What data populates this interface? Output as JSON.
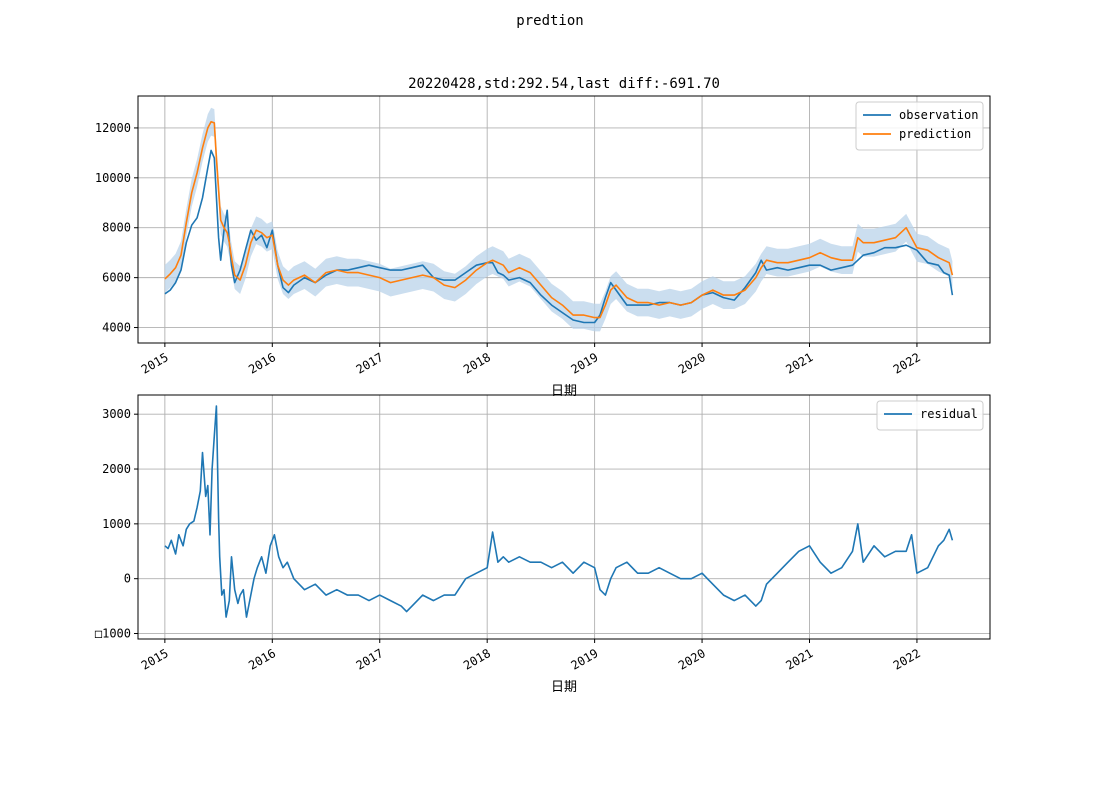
{
  "figure": {
    "suptitle": "predtion"
  },
  "colors": {
    "observation": "#1f77b4",
    "prediction": "#ff7f0e",
    "band": "#b9d3ea",
    "grid": "#b0b0b0",
    "axis": "#000000"
  },
  "chart_data": [
    {
      "type": "line",
      "title": "20220428,std:292.54,last diff:-691.70",
      "xlabel": "日期",
      "ylabel": "",
      "xlim": [
        2014.75,
        2022.68
      ],
      "ylim": [
        3380,
        13280
      ],
      "x_ticks": [
        2015,
        2016,
        2017,
        2018,
        2019,
        2020,
        2021,
        2022
      ],
      "x_tick_labels": [
        "2015",
        "2016",
        "2017",
        "2018",
        "2019",
        "2020",
        "2021",
        "2022"
      ],
      "y_ticks": [
        4000,
        6000,
        8000,
        10000,
        12000
      ],
      "y_tick_labels": [
        "4000",
        "6000",
        "8000",
        "10000",
        "12000"
      ],
      "grid": true,
      "legend_position": "top-right",
      "legend": [
        "observation",
        "prediction"
      ],
      "band_std": 292.54,
      "series": [
        {
          "name": "observation",
          "x": [
            2015.0,
            2015.05,
            2015.1,
            2015.15,
            2015.2,
            2015.25,
            2015.3,
            2015.35,
            2015.4,
            2015.43,
            2015.46,
            2015.5,
            2015.52,
            2015.55,
            2015.58,
            2015.6,
            2015.62,
            2015.65,
            2015.7,
            2015.75,
            2015.8,
            2015.85,
            2015.9,
            2015.95,
            2016.0,
            2016.05,
            2016.1,
            2016.15,
            2016.2,
            2016.3,
            2016.4,
            2016.5,
            2016.6,
            2016.7,
            2016.8,
            2016.9,
            2017.0,
            2017.1,
            2017.2,
            2017.3,
            2017.4,
            2017.5,
            2017.6,
            2017.7,
            2017.8,
            2017.9,
            2018.0,
            2018.05,
            2018.1,
            2018.15,
            2018.2,
            2018.3,
            2018.4,
            2018.5,
            2018.6,
            2018.7,
            2018.8,
            2018.9,
            2019.0,
            2019.05,
            2019.1,
            2019.15,
            2019.2,
            2019.3,
            2019.4,
            2019.5,
            2019.6,
            2019.7,
            2019.8,
            2019.9,
            2020.0,
            2020.1,
            2020.2,
            2020.3,
            2020.4,
            2020.5,
            2020.55,
            2020.6,
            2020.7,
            2020.8,
            2020.9,
            2021.0,
            2021.1,
            2021.2,
            2021.3,
            2021.4,
            2021.5,
            2021.6,
            2021.7,
            2021.8,
            2021.9,
            2022.0,
            2022.1,
            2022.2,
            2022.25,
            2022.3,
            2022.33
          ],
          "values": [
            5350,
            5500,
            5800,
            6300,
            7400,
            8100,
            8400,
            9200,
            10400,
            11100,
            10800,
            7600,
            6700,
            7900,
            8700,
            7400,
            6500,
            5800,
            6300,
            7100,
            7900,
            7500,
            7700,
            7200,
            7900,
            6500,
            5600,
            5400,
            5700,
            6000,
            5800,
            6100,
            6300,
            6300,
            6400,
            6500,
            6400,
            6300,
            6300,
            6400,
            6500,
            6000,
            5900,
            5900,
            6200,
            6500,
            6600,
            6600,
            6200,
            6100,
            5900,
            6000,
            5800,
            5300,
            4900,
            4600,
            4300,
            4200,
            4200,
            4500,
            5200,
            5800,
            5500,
            4900,
            4900,
            4900,
            5000,
            5000,
            4900,
            5000,
            5300,
            5400,
            5200,
            5100,
            5600,
            6200,
            6700,
            6300,
            6400,
            6300,
            6400,
            6500,
            6500,
            6300,
            6400,
            6500,
            6900,
            7000,
            7200,
            7200,
            7300,
            7100,
            6600,
            6500,
            6200,
            6100,
            5300
          ]
        },
        {
          "name": "prediction",
          "x": [
            2015.0,
            2015.05,
            2015.1,
            2015.15,
            2015.2,
            2015.25,
            2015.3,
            2015.35,
            2015.4,
            2015.43,
            2015.46,
            2015.48,
            2015.52,
            2015.55,
            2015.58,
            2015.6,
            2015.62,
            2015.65,
            2015.7,
            2015.75,
            2015.8,
            2015.85,
            2015.9,
            2015.95,
            2016.0,
            2016.05,
            2016.1,
            2016.15,
            2016.2,
            2016.3,
            2016.4,
            2016.5,
            2016.6,
            2016.7,
            2016.8,
            2016.9,
            2017.0,
            2017.1,
            2017.2,
            2017.3,
            2017.4,
            2017.5,
            2017.6,
            2017.7,
            2017.8,
            2017.9,
            2018.0,
            2018.05,
            2018.1,
            2018.15,
            2018.2,
            2018.3,
            2018.4,
            2018.5,
            2018.6,
            2018.7,
            2018.8,
            2018.9,
            2019.0,
            2019.05,
            2019.1,
            2019.15,
            2019.2,
            2019.3,
            2019.4,
            2019.5,
            2019.6,
            2019.7,
            2019.8,
            2019.9,
            2020.0,
            2020.1,
            2020.2,
            2020.3,
            2020.4,
            2020.5,
            2020.55,
            2020.6,
            2020.7,
            2020.8,
            2020.9,
            2021.0,
            2021.1,
            2021.2,
            2021.3,
            2021.4,
            2021.45,
            2021.5,
            2021.6,
            2021.7,
            2021.8,
            2021.9,
            2022.0,
            2022.1,
            2022.2,
            2022.25,
            2022.3,
            2022.33
          ],
          "values": [
            5950,
            6150,
            6400,
            6900,
            8200,
            9400,
            10200,
            11200,
            12000,
            12250,
            12200,
            10800,
            8300,
            8000,
            7800,
            7400,
            6800,
            6100,
            5900,
            6500,
            7400,
            7900,
            7800,
            7600,
            7700,
            6500,
            5900,
            5700,
            5900,
            6100,
            5800,
            6200,
            6300,
            6200,
            6200,
            6100,
            6000,
            5800,
            5900,
            6000,
            6100,
            6000,
            5700,
            5600,
            5900,
            6300,
            6600,
            6700,
            6600,
            6500,
            6200,
            6400,
            6200,
            5700,
            5200,
            4900,
            4500,
            4500,
            4400,
            4400,
            4900,
            5500,
            5700,
            5200,
            5000,
            5000,
            4900,
            5000,
            4900,
            5000,
            5300,
            5500,
            5300,
            5300,
            5500,
            6000,
            6400,
            6700,
            6600,
            6600,
            6700,
            6800,
            7000,
            6800,
            6700,
            6700,
            7600,
            7400,
            7400,
            7500,
            7600,
            8000,
            7200,
            7100,
            6800,
            6700,
            6600,
            6100
          ]
        }
      ]
    },
    {
      "type": "line",
      "title": "",
      "xlabel": "日期",
      "ylabel": "",
      "xlim": [
        2014.75,
        2022.68
      ],
      "ylim": [
        -1100,
        3350
      ],
      "x_ticks": [
        2015,
        2016,
        2017,
        2018,
        2019,
        2020,
        2021,
        2022
      ],
      "x_tick_labels": [
        "2015",
        "2016",
        "2017",
        "2018",
        "2019",
        "2020",
        "2021",
        "2022"
      ],
      "y_ticks": [
        -1000,
        0,
        1000,
        2000,
        3000
      ],
      "y_tick_labels": [
        "□1000",
        "0",
        "1000",
        "2000",
        "3000"
      ],
      "grid": true,
      "legend_position": "top-right",
      "legend": [
        "residual"
      ],
      "series": [
        {
          "name": "residual",
          "x": [
            2015.0,
            2015.03,
            2015.06,
            2015.1,
            2015.13,
            2015.17,
            2015.2,
            2015.23,
            2015.27,
            2015.3,
            2015.33,
            2015.35,
            2015.38,
            2015.4,
            2015.42,
            2015.44,
            2015.46,
            2015.48,
            2015.5,
            2015.51,
            2015.53,
            2015.55,
            2015.57,
            2015.6,
            2015.62,
            2015.65,
            2015.68,
            2015.7,
            2015.73,
            2015.76,
            2015.8,
            2015.83,
            2015.86,
            2015.9,
            2015.94,
            2015.98,
            2016.02,
            2016.06,
            2016.1,
            2016.14,
            2016.2,
            2016.3,
            2016.4,
            2016.5,
            2016.6,
            2016.7,
            2016.8,
            2016.9,
            2017.0,
            2017.1,
            2017.2,
            2017.25,
            2017.3,
            2017.4,
            2017.5,
            2017.6,
            2017.7,
            2017.8,
            2017.9,
            2018.0,
            2018.05,
            2018.1,
            2018.15,
            2018.2,
            2018.3,
            2018.4,
            2018.5,
            2018.6,
            2018.7,
            2018.8,
            2018.9,
            2019.0,
            2019.05,
            2019.1,
            2019.15,
            2019.2,
            2019.3,
            2019.4,
            2019.5,
            2019.6,
            2019.7,
            2019.8,
            2019.9,
            2020.0,
            2020.05,
            2020.1,
            2020.2,
            2020.3,
            2020.4,
            2020.5,
            2020.55,
            2020.6,
            2020.7,
            2020.8,
            2020.9,
            2021.0,
            2021.1,
            2021.2,
            2021.3,
            2021.4,
            2021.45,
            2021.5,
            2021.6,
            2021.7,
            2021.8,
            2021.9,
            2021.95,
            2022.0,
            2022.1,
            2022.2,
            2022.25,
            2022.3,
            2022.33
          ],
          "values": [
            600,
            550,
            700,
            450,
            800,
            600,
            900,
            1000,
            1050,
            1300,
            1600,
            2300,
            1500,
            1700,
            800,
            2000,
            2600,
            3150,
            1100,
            400,
            -300,
            -200,
            -700,
            -400,
            400,
            -200,
            -450,
            -300,
            -200,
            -700,
            -300,
            0,
            200,
            400,
            100,
            600,
            800,
            400,
            200,
            300,
            0,
            -200,
            -100,
            -300,
            -200,
            -300,
            -300,
            -400,
            -300,
            -400,
            -500,
            -600,
            -500,
            -300,
            -400,
            -300,
            -300,
            0,
            100,
            200,
            850,
            300,
            400,
            300,
            400,
            300,
            300,
            200,
            300,
            100,
            300,
            200,
            -200,
            -300,
            0,
            200,
            300,
            100,
            100,
            200,
            100,
            0,
            0,
            100,
            0,
            -100,
            -300,
            -400,
            -300,
            -500,
            -400,
            -100,
            100,
            300,
            500,
            600,
            300,
            100,
            200,
            500,
            1000,
            300,
            600,
            400,
            500,
            500,
            800,
            100,
            200,
            600,
            700,
            900,
            700
          ]
        }
      ]
    }
  ]
}
